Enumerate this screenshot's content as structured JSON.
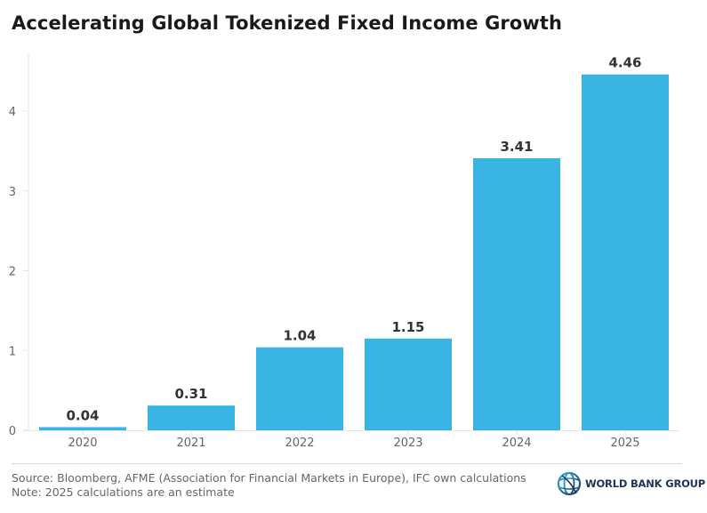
{
  "chart_data": {
    "type": "bar",
    "title": "Accelerating Global Tokenized Fixed Income Growth",
    "categories": [
      "2020",
      "2021",
      "2022",
      "2023",
      "2024",
      "2025"
    ],
    "values": [
      0.04,
      0.31,
      1.04,
      1.15,
      3.41,
      4.46
    ],
    "data_labels": [
      "0.04",
      "0.31",
      "1.04",
      "1.15",
      "3.41",
      "4.46"
    ],
    "xlabel": "",
    "ylabel": "",
    "ylim": [
      0,
      4.65
    ],
    "yticks": [
      0,
      1,
      2,
      3,
      4
    ],
    "grid": false,
    "legend": "none",
    "bar_color": "#3ab4e3"
  },
  "footer": {
    "source": "Source: Bloomberg, AFME (Association for Financial Markets in Europe), IFC own calculations",
    "note": "Note: 2025 calculations are an estimate"
  },
  "logo": {
    "text": "WORLD BANK GROUP",
    "icon": "globe-icon"
  }
}
